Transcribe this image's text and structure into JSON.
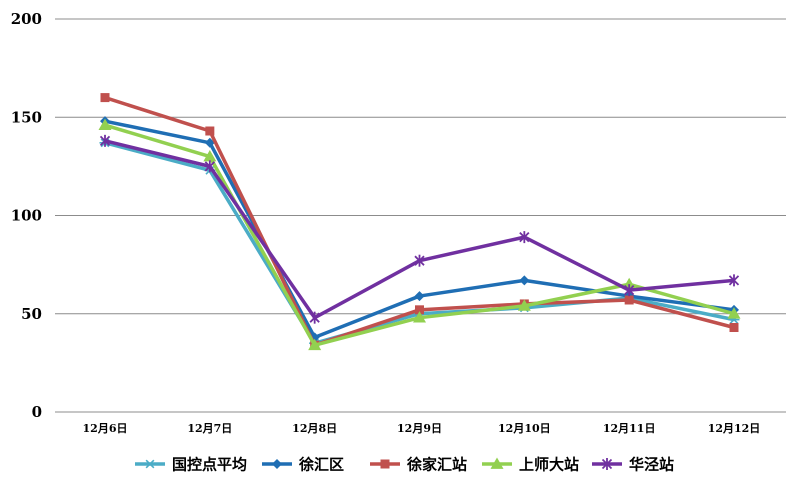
{
  "chart_data": {
    "type": "line",
    "categories": [
      "12月6日",
      "12月7日",
      "12月8日",
      "12月9日",
      "12月10日",
      "12月11日",
      "12月12日"
    ],
    "ylim": [
      0,
      200
    ],
    "yticks": [
      0,
      50,
      100,
      150,
      200
    ],
    "grid": true,
    "legend": "bottom",
    "series": [
      {
        "name": "国控点平均",
        "color": "#4BACC6",
        "marker": "star",
        "values": [
          137,
          123,
          35,
          50,
          53,
          58,
          47
        ]
      },
      {
        "name": "徐汇区",
        "color": "#1F6EB4",
        "marker": "diamond",
        "values": [
          148,
          137,
          38,
          59,
          67,
          59,
          52
        ]
      },
      {
        "name": "徐家汇站",
        "color": "#C0504D",
        "marker": "square",
        "values": [
          160,
          143,
          34,
          52,
          55,
          57,
          43
        ]
      },
      {
        "name": "上师大站",
        "color": "#92D050",
        "marker": "triangle",
        "values": [
          146,
          130,
          34,
          48,
          54,
          65,
          50
        ]
      },
      {
        "name": "华泾站",
        "color": "#7030A0",
        "marker": "xstar",
        "values": [
          138,
          125,
          48,
          77,
          89,
          62,
          67
        ]
      }
    ]
  }
}
